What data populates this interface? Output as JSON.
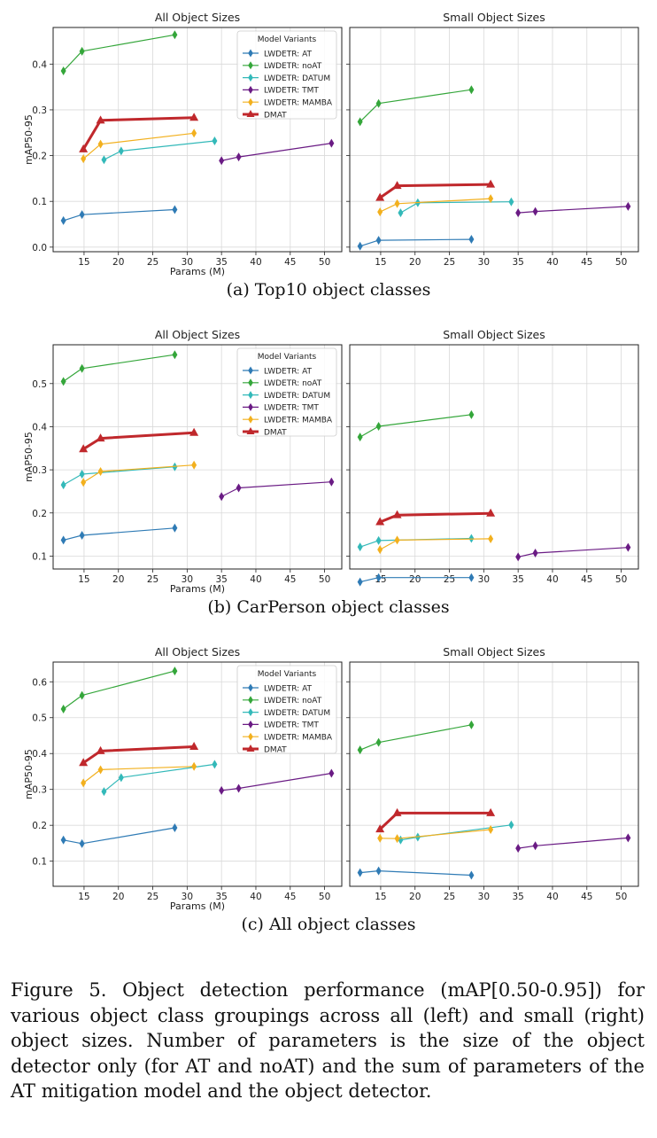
{
  "figure_caption": "Figure 5. Object detection performance (mAP[0.50-0.95]) for various object class groupings across all (left) and small (right) object sizes. Number of parameters is the size of the object detector only (for AT and noAT) and the sum of parameters of the AT mitigation model and the object detector.",
  "colors": {
    "LWDETR: AT": "#2f7bb5",
    "LWDETR: noAT": "#34a63a",
    "LWDETR: DATUM": "#33b9b9",
    "LWDETR: TMT": "#6a1b84",
    "LWDETR: MAMBA": "#f2b01e",
    "DMAT": "#c0282c"
  },
  "chart_data": [
    {
      "group": "a",
      "caption": "(a) Top10 object classes",
      "legend_title": "Model Variants",
      "legend_placement": "top-right of left panel",
      "panels": [
        {
          "type": "line",
          "title": "All Object Sizes",
          "xlabel": "Params (M)",
          "ylabel": "mAP50-95",
          "xlim": [
            10.5,
            52.5
          ],
          "ylim": [
            -0.01,
            0.48
          ],
          "xticks": [
            15,
            20,
            25,
            30,
            35,
            40,
            45,
            50
          ],
          "yticks": [
            0.0,
            0.1,
            0.2,
            0.3,
            0.4
          ],
          "ytick_labels": [
            "0.0",
            "0.1",
            "0.2",
            "0.3",
            "0.4"
          ],
          "grid": true,
          "series": [
            {
              "name": "LWDETR: AT",
              "x": [
                12.0,
                14.7,
                28.2
              ],
              "y": [
                0.058,
                0.071,
                0.082
              ]
            },
            {
              "name": "LWDETR: noAT",
              "x": [
                12.0,
                14.7,
                28.2
              ],
              "y": [
                0.385,
                0.428,
                0.464
              ]
            },
            {
              "name": "LWDETR: DATUM",
              "x": [
                17.9,
                20.4,
                34.0
              ],
              "y": [
                0.191,
                0.21,
                0.232
              ]
            },
            {
              "name": "LWDETR: TMT",
              "x": [
                35.0,
                37.5,
                51.0
              ],
              "y": [
                0.189,
                0.197,
                0.227
              ]
            },
            {
              "name": "LWDETR: MAMBA",
              "x": [
                14.9,
                17.4,
                31.0
              ],
              "y": [
                0.193,
                0.225,
                0.249
              ]
            },
            {
              "name": "DMAT",
              "x": [
                14.9,
                17.4,
                31.0
              ],
              "y": [
                0.214,
                0.277,
                0.283
              ]
            }
          ]
        },
        {
          "type": "line",
          "title": "Small Object Sizes",
          "xlabel": "",
          "ylabel": "",
          "xlim": [
            10.5,
            52.5
          ],
          "ylim": [
            -0.01,
            0.48
          ],
          "xticks": [
            15,
            20,
            25,
            30,
            35,
            40,
            45,
            50
          ],
          "yticks": [
            0.0,
            0.1,
            0.2,
            0.3,
            0.4
          ],
          "ytick_labels": [],
          "grid": true,
          "series": [
            {
              "name": "LWDETR: AT",
              "x": [
                12.0,
                14.7,
                28.2
              ],
              "y": [
                0.002,
                0.015,
                0.017
              ]
            },
            {
              "name": "LWDETR: noAT",
              "x": [
                12.0,
                14.7,
                28.2
              ],
              "y": [
                0.274,
                0.314,
                0.344
              ]
            },
            {
              "name": "LWDETR: DATUM",
              "x": [
                17.9,
                20.4,
                34.0
              ],
              "y": [
                0.075,
                0.097,
                0.099
              ]
            },
            {
              "name": "LWDETR: TMT",
              "x": [
                35.0,
                37.5,
                51.0
              ],
              "y": [
                0.075,
                0.078,
                0.089
              ]
            },
            {
              "name": "LWDETR: MAMBA",
              "x": [
                14.9,
                17.4,
                31.0
              ],
              "y": [
                0.077,
                0.095,
                0.106
              ]
            },
            {
              "name": "DMAT",
              "x": [
                14.9,
                17.4,
                31.0
              ],
              "y": [
                0.108,
                0.134,
                0.137
              ]
            }
          ]
        }
      ]
    },
    {
      "group": "b",
      "caption": "(b) CarPerson object classes",
      "legend_title": "Model Variants",
      "legend_placement": "top-right of left panel",
      "panels": [
        {
          "type": "line",
          "title": "All Object Sizes",
          "xlabel": "Params (M)",
          "ylabel": "mAP50-95",
          "xlim": [
            10.5,
            52.5
          ],
          "ylim": [
            0.07,
            0.59
          ],
          "xticks": [
            15,
            20,
            25,
            30,
            35,
            40,
            45,
            50
          ],
          "yticks": [
            0.1,
            0.2,
            0.3,
            0.4,
            0.5
          ],
          "ytick_labels": [
            "0.1",
            "0.2",
            "0.3",
            "0.4",
            "0.5"
          ],
          "grid": true,
          "series": [
            {
              "name": "LWDETR: AT",
              "x": [
                12.0,
                14.7,
                28.2
              ],
              "y": [
                0.137,
                0.148,
                0.165
              ]
            },
            {
              "name": "LWDETR: noAT",
              "x": [
                12.0,
                14.7,
                28.2
              ],
              "y": [
                0.505,
                0.535,
                0.567
              ]
            },
            {
              "name": "LWDETR: DATUM",
              "x": [
                12.0,
                14.7,
                28.2
              ],
              "y": [
                0.265,
                0.29,
                0.307
              ]
            },
            {
              "name": "LWDETR: TMT",
              "x": [
                35.0,
                37.5,
                51.0
              ],
              "y": [
                0.238,
                0.258,
                0.272
              ]
            },
            {
              "name": "LWDETR: MAMBA",
              "x": [
                14.9,
                17.4,
                31.0
              ],
              "y": [
                0.271,
                0.296,
                0.311
              ]
            },
            {
              "name": "DMAT",
              "x": [
                14.9,
                17.4,
                31.0
              ],
              "y": [
                0.348,
                0.373,
                0.386
              ]
            }
          ]
        },
        {
          "type": "line",
          "title": "Small Object Sizes",
          "xlabel": "",
          "ylabel": "",
          "xlim": [
            10.5,
            52.5
          ],
          "ylim": [
            0.07,
            0.59
          ],
          "xticks": [
            15,
            20,
            25,
            30,
            35,
            40,
            45,
            50
          ],
          "yticks": [
            0.1,
            0.2,
            0.3,
            0.4,
            0.5
          ],
          "ytick_labels": [],
          "grid": true,
          "series": [
            {
              "name": "LWDETR: AT",
              "x": [
                12.0,
                14.7,
                28.2
              ],
              "y": [
                0.04,
                0.05,
                0.05
              ]
            },
            {
              "name": "LWDETR: noAT",
              "x": [
                12.0,
                14.7,
                28.2
              ],
              "y": [
                0.376,
                0.401,
                0.428
              ]
            },
            {
              "name": "LWDETR: DATUM",
              "x": [
                12.0,
                14.7,
                28.2
              ],
              "y": [
                0.121,
                0.136,
                0.141
              ]
            },
            {
              "name": "LWDETR: TMT",
              "x": [
                35.0,
                37.5,
                51.0
              ],
              "y": [
                0.098,
                0.107,
                0.12
              ]
            },
            {
              "name": "LWDETR: MAMBA",
              "x": [
                14.9,
                17.4,
                31.0
              ],
              "y": [
                0.115,
                0.137,
                0.14
              ]
            },
            {
              "name": "DMAT",
              "x": [
                14.9,
                17.4,
                31.0
              ],
              "y": [
                0.179,
                0.195,
                0.199
              ]
            }
          ]
        }
      ]
    },
    {
      "group": "c",
      "caption": "(c) All object classes",
      "legend_title": "Model Variants",
      "legend_placement": "top-right of left panel",
      "panels": [
        {
          "type": "line",
          "title": "All Object Sizes",
          "xlabel": "Params (M)",
          "ylabel": "mAP50-95",
          "xlim": [
            10.5,
            52.5
          ],
          "ylim": [
            0.03,
            0.655
          ],
          "xticks": [
            15,
            20,
            25,
            30,
            35,
            40,
            45,
            50
          ],
          "yticks": [
            0.1,
            0.2,
            0.3,
            0.4,
            0.5,
            0.6
          ],
          "ytick_labels": [
            "0.1",
            "0.2",
            "0.3",
            "0.4",
            "0.5",
            "0.6"
          ],
          "grid": true,
          "series": [
            {
              "name": "LWDETR: AT",
              "x": [
                12.0,
                14.7,
                28.2
              ],
              "y": [
                0.159,
                0.149,
                0.193
              ]
            },
            {
              "name": "LWDETR: noAT",
              "x": [
                12.0,
                14.7,
                28.2
              ],
              "y": [
                0.524,
                0.562,
                0.63
              ]
            },
            {
              "name": "LWDETR: DATUM",
              "x": [
                17.9,
                20.4,
                34.0
              ],
              "y": [
                0.294,
                0.333,
                0.37
              ]
            },
            {
              "name": "LWDETR: TMT",
              "x": [
                35.0,
                37.5,
                51.0
              ],
              "y": [
                0.297,
                0.303,
                0.345
              ]
            },
            {
              "name": "LWDETR: MAMBA",
              "x": [
                14.9,
                17.4,
                31.0
              ],
              "y": [
                0.318,
                0.355,
                0.364
              ]
            },
            {
              "name": "DMAT",
              "x": [
                14.9,
                17.4,
                31.0
              ],
              "y": [
                0.374,
                0.407,
                0.419
              ]
            }
          ]
        },
        {
          "type": "line",
          "title": "Small Object Sizes",
          "xlabel": "",
          "ylabel": "",
          "xlim": [
            10.5,
            52.5
          ],
          "ylim": [
            0.03,
            0.655
          ],
          "xticks": [
            15,
            20,
            25,
            30,
            35,
            40,
            45,
            50
          ],
          "yticks": [
            0.1,
            0.2,
            0.3,
            0.4,
            0.5,
            0.6
          ],
          "ytick_labels": [],
          "grid": true,
          "series": [
            {
              "name": "LWDETR: AT",
              "x": [
                12.0,
                14.7,
                28.2
              ],
              "y": [
                0.068,
                0.073,
                0.061
              ]
            },
            {
              "name": "LWDETR: noAT",
              "x": [
                12.0,
                14.7,
                28.2
              ],
              "y": [
                0.41,
                0.431,
                0.48
              ]
            },
            {
              "name": "LWDETR: DATUM",
              "x": [
                17.9,
                20.4,
                34.0
              ],
              "y": [
                0.159,
                0.167,
                0.201
              ]
            },
            {
              "name": "LWDETR: TMT",
              "x": [
                35.0,
                37.5,
                51.0
              ],
              "y": [
                0.136,
                0.143,
                0.165
              ]
            },
            {
              "name": "LWDETR: MAMBA",
              "x": [
                14.9,
                17.4,
                31.0
              ],
              "y": [
                0.164,
                0.163,
                0.188
              ]
            },
            {
              "name": "DMAT",
              "x": [
                14.9,
                17.4,
                31.0
              ],
              "y": [
                0.189,
                0.234,
                0.234
              ]
            }
          ]
        }
      ]
    }
  ]
}
